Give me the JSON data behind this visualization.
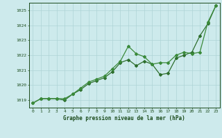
{
  "x": [
    0,
    1,
    2,
    3,
    4,
    5,
    6,
    7,
    8,
    9,
    10,
    11,
    12,
    13,
    14,
    15,
    16,
    17,
    18,
    19,
    20,
    21,
    22,
    23
  ],
  "line1": [
    1018.8,
    1019.1,
    1019.1,
    1019.1,
    1019.0,
    1019.4,
    1019.7,
    1020.1,
    1020.3,
    1020.5,
    1020.9,
    1021.5,
    1021.7,
    1021.3,
    1021.6,
    1021.4,
    1020.7,
    1020.8,
    1021.8,
    1022.0,
    1022.2,
    1023.3,
    1024.1,
    1025.3
  ],
  "line2": [
    1018.8,
    1019.1,
    1019.1,
    1019.1,
    1019.1,
    1019.4,
    1019.8,
    1020.2,
    1020.4,
    1020.6,
    1021.1,
    1021.6,
    1022.6,
    1022.1,
    1021.9,
    1021.4,
    1021.5,
    1021.5,
    1022.0,
    1022.2,
    1022.1,
    1022.2,
    1024.2,
    1025.3
  ],
  "ylim": [
    1018.5,
    1025.5
  ],
  "yticks": [
    1019,
    1020,
    1021,
    1022,
    1023,
    1024,
    1025
  ],
  "xticks": [
    0,
    1,
    2,
    3,
    4,
    5,
    6,
    7,
    8,
    9,
    10,
    11,
    12,
    13,
    14,
    15,
    16,
    17,
    18,
    19,
    20,
    21,
    22,
    23
  ],
  "line_color1": "#2d6e2d",
  "line_color2": "#3a8a3a",
  "bg_color": "#cdeaec",
  "grid_color": "#aed4d6",
  "text_color": "#1a4a1a",
  "xlabel": "Graphe pression niveau de la mer (hPa)",
  "marker": "D",
  "marker_size": 2.0,
  "line_width": 0.9,
  "tick_fontsize": 4.5,
  "xlabel_fontsize": 5.5
}
